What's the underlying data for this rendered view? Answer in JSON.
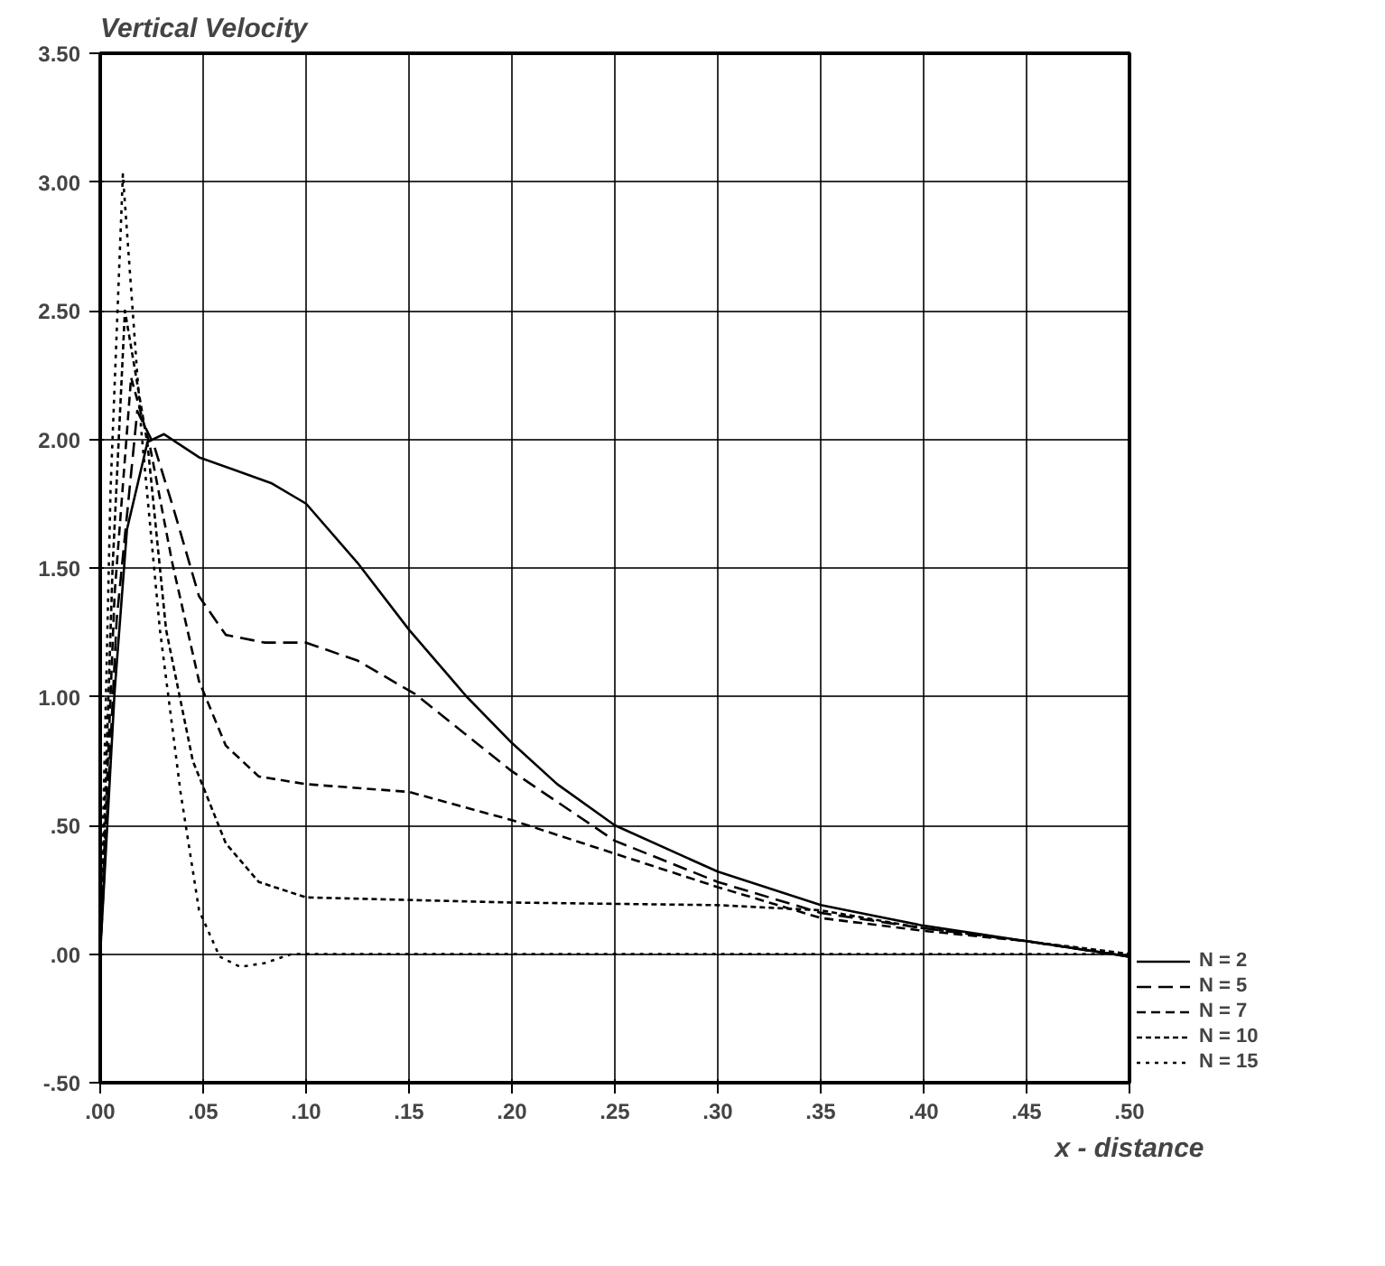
{
  "chart_data": {
    "type": "line",
    "title": "Vertical Velocity",
    "xlabel": "x - distance",
    "xlim": [
      0,
      0.5
    ],
    "ylim": [
      -0.5,
      3.5
    ],
    "xticks": [
      {
        "value": 0,
        "label": ".00"
      },
      {
        "value": 0.05,
        "label": ".05"
      },
      {
        "value": 0.1,
        "label": ".10"
      },
      {
        "value": 0.15,
        "label": ".15"
      },
      {
        "value": 0.2,
        "label": ".20"
      },
      {
        "value": 0.25,
        "label": ".25"
      },
      {
        "value": 0.3,
        "label": ".30"
      },
      {
        "value": 0.35,
        "label": ".35"
      },
      {
        "value": 0.4,
        "label": ".40"
      },
      {
        "value": 0.45,
        "label": ".45"
      },
      {
        "value": 0.5,
        "label": ".50"
      }
    ],
    "yticks": [
      {
        "value": -0.5,
        "label": "-.50"
      },
      {
        "value": 0,
        "label": ".00"
      },
      {
        "value": 0.5,
        "label": ".50"
      },
      {
        "value": 1,
        "label": "1.00"
      },
      {
        "value": 1.5,
        "label": "1.50"
      },
      {
        "value": 2,
        "label": "2.00"
      },
      {
        "value": 2.5,
        "label": "2.50"
      },
      {
        "value": 3,
        "label": "3.00"
      },
      {
        "value": 3.5,
        "label": "3.50"
      }
    ],
    "grid": true,
    "legend": "right",
    "marker": "none",
    "series": [
      {
        "name": "N = 2",
        "color": "#000000",
        "line_style": "solid",
        "x": [
          0,
          0.007,
          0.013,
          0.023,
          0.031,
          0.048,
          0.083,
          0.1,
          0.125,
          0.15,
          0.178,
          0.2,
          0.222,
          0.25,
          0.3,
          0.35,
          0.4,
          0.45,
          0.5
        ],
        "values": [
          0,
          1.02,
          1.65,
          1.99,
          2.02,
          1.93,
          1.83,
          1.75,
          1.52,
          1.26,
          1.0,
          0.82,
          0.66,
          0.5,
          0.32,
          0.19,
          0.11,
          0.05,
          -0.01
        ]
      },
      {
        "name": "N = 5",
        "color": "#000000",
        "line_style": "dashed",
        "x": [
          0,
          0.008,
          0.018,
          0.026,
          0.036,
          0.048,
          0.061,
          0.08,
          0.1,
          0.125,
          0.153,
          0.2,
          0.25,
          0.3,
          0.35,
          0.4,
          0.45,
          0.5
        ],
        "values": [
          0,
          1.3,
          2.11,
          1.98,
          1.72,
          1.39,
          1.24,
          1.21,
          1.21,
          1.14,
          1.01,
          0.71,
          0.44,
          0.28,
          0.16,
          0.1,
          0.05,
          -0.01
        ]
      },
      {
        "name": "N = 7",
        "color": "#000000",
        "line_style": "dashed",
        "x": [
          0,
          0.007,
          0.015,
          0.024,
          0.035,
          0.048,
          0.061,
          0.077,
          0.1,
          0.15,
          0.2,
          0.25,
          0.3,
          0.35,
          0.4,
          0.45,
          0.5
        ],
        "values": [
          0,
          1.4,
          2.24,
          1.98,
          1.52,
          1.06,
          0.81,
          0.69,
          0.66,
          0.63,
          0.52,
          0.39,
          0.26,
          0.14,
          0.09,
          0.05,
          -0.01
        ]
      },
      {
        "name": "N = 10",
        "color": "#000000",
        "line_style": "dotted",
        "x": [
          0,
          0.006,
          0.012,
          0.023,
          0.032,
          0.045,
          0.061,
          0.077,
          0.1,
          0.2,
          0.3,
          0.35,
          0.4,
          0.45,
          0.5
        ],
        "values": [
          0,
          1.5,
          2.5,
          1.98,
          1.26,
          0.75,
          0.43,
          0.28,
          0.22,
          0.2,
          0.19,
          0.17,
          0.1,
          0.05,
          0
        ]
      },
      {
        "name": "N = 15",
        "color": "#000000",
        "line_style": "dotted",
        "x": [
          0,
          0.005,
          0.011,
          0.02,
          0.029,
          0.039,
          0.048,
          0.058,
          0.068,
          0.08,
          0.093,
          0.2,
          0.3,
          0.4,
          0.5
        ],
        "values": [
          0,
          1.8,
          3.03,
          2.03,
          1.26,
          0.63,
          0.17,
          -0.01,
          -0.05,
          -0.035,
          0,
          0,
          0,
          0,
          0
        ]
      }
    ]
  }
}
